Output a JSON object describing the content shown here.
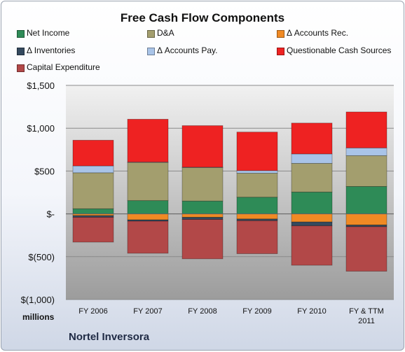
{
  "chart_data": {
    "type": "bar",
    "stacked": true,
    "title": "Free Cash Flow Components",
    "ylabel": "millions",
    "ylim": [
      -1000,
      1500
    ],
    "yticks": [
      1500,
      1000,
      500,
      0,
      -500,
      -1000
    ],
    "ytick_labels": [
      "$1,500",
      "$1,000",
      "$500",
      "$-",
      "$(500)",
      "$(1,000)"
    ],
    "grid": true,
    "legend_position": "top",
    "categories": [
      "FY 2006",
      "FY 2007",
      "FY 2008",
      "FY 2009",
      "FY 2010",
      "FY & TTM 2011"
    ],
    "series": [
      {
        "name": "Net Income",
        "color": "#2e8b57",
        "values": [
          60,
          155,
          150,
          195,
          255,
          320
        ]
      },
      {
        "name": "D&A",
        "color": "#a39e6e",
        "values": [
          420,
          445,
          390,
          280,
          335,
          360
        ]
      },
      {
        "name": "Δ Accounts Rec.",
        "color": "#f08a24",
        "values": [
          -20,
          -70,
          -40,
          -60,
          -95,
          -130
        ]
      },
      {
        "name": "Δ Inventories",
        "color": "#34495e",
        "values": [
          -20,
          -15,
          -25,
          -20,
          -45,
          -20
        ]
      },
      {
        "name": "Δ Accounts Pay.",
        "color": "#a9c4e8",
        "values": [
          80,
          5,
          5,
          30,
          110,
          90
        ]
      },
      {
        "name": "Questionable Cash Sources",
        "color": "#ee2222",
        "values": [
          300,
          500,
          485,
          450,
          360,
          420
        ]
      },
      {
        "name": "Capital Expenditure",
        "color": "#b24848",
        "values": [
          -290,
          -375,
          -460,
          -385,
          -460,
          -520
        ]
      }
    ]
  },
  "footer": {
    "company": "Nortel Inversora"
  }
}
